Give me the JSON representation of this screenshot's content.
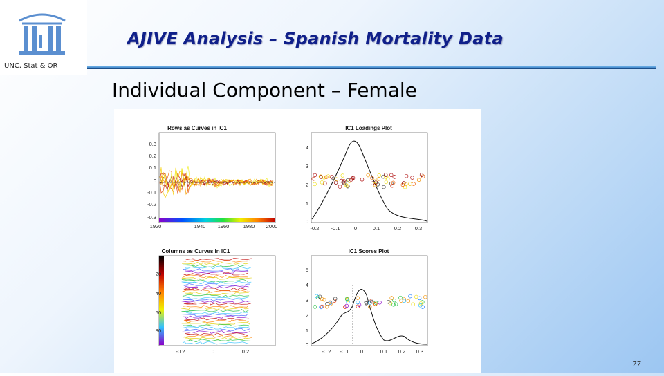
{
  "header": {
    "title": "AJIVE Analysis – Spanish Mortality Data",
    "department": "UNC, Stat & OR"
  },
  "slide": {
    "subtitle": "Individual Component – Female",
    "page_number": "77"
  },
  "colors": {
    "title": "#10208a",
    "rule": "#2a6fb8"
  },
  "figure": {
    "panels": [
      {
        "title": "Rows as Curves in IC1",
        "y_ticks": [
          "0.3",
          "0.2",
          "0.1",
          "0",
          "-0.1",
          "-0.2",
          "-0.3"
        ],
        "x_ticks": [
          "1920",
          "1940",
          "1960",
          "1980",
          "2000"
        ]
      },
      {
        "title": "IC1 Loadings Plot",
        "y_ticks": [
          "4",
          "3",
          "2",
          "1",
          "0"
        ],
        "x_ticks": [
          "-0.2",
          "-0.1",
          "0",
          "0.1",
          "0.2",
          "0.3"
        ]
      },
      {
        "title": "Columns as Curves in IC1",
        "y_ticks": [
          "20",
          "40",
          "60",
          "80"
        ],
        "x_ticks": [
          "-0.2",
          "0",
          "0.2"
        ]
      },
      {
        "title": "IC1 Scores Plot",
        "y_ticks": [
          "5",
          "4",
          "3",
          "2",
          "1",
          "0"
        ],
        "x_ticks": [
          "-0.2",
          "-0.1",
          "0",
          "0.1",
          "0.2",
          "0.3"
        ]
      }
    ]
  }
}
